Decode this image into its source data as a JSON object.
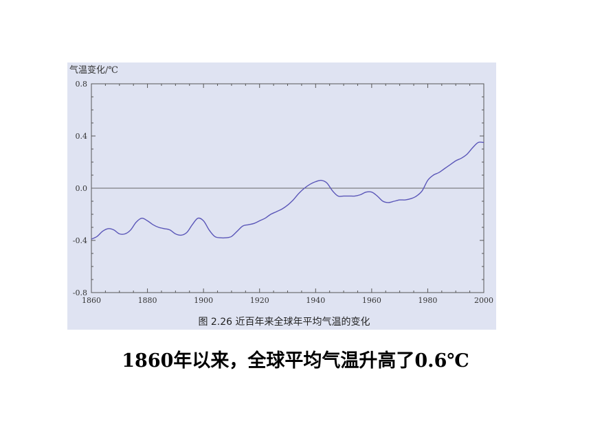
{
  "chart_data": {
    "type": "line",
    "title": "图 2.26   近百年来全球年平均气温的变化",
    "ylabel": "气温变化/℃",
    "xlabel": "",
    "xlim": [
      1860,
      2000
    ],
    "ylim": [
      -0.8,
      0.8
    ],
    "x_ticks": [
      "1860",
      "1880",
      "1900",
      "1920",
      "1940",
      "1960",
      "1980",
      "2000"
    ],
    "y_ticks": [
      "0.8",
      "0.4",
      "0.0",
      "-0.4",
      "-0.8"
    ],
    "grid": false,
    "reference_line": 0.0,
    "colors": {
      "line": "#5a56b8",
      "axis": "#555555",
      "background": "#dfe3f2"
    },
    "series": [
      {
        "x": [
          1860,
          1862,
          1864,
          1866,
          1868,
          1870,
          1872,
          1874,
          1876,
          1878,
          1880,
          1882,
          1884,
          1886,
          1888,
          1890,
          1892,
          1894,
          1896,
          1898,
          1900,
          1902,
          1904,
          1906,
          1908,
          1910,
          1912,
          1914,
          1916,
          1918,
          1920,
          1922,
          1924,
          1926,
          1928,
          1930,
          1932,
          1934,
          1936,
          1938,
          1940,
          1942,
          1944,
          1946,
          1948,
          1950,
          1952,
          1954,
          1956,
          1958,
          1960,
          1962,
          1964,
          1966,
          1968,
          1970,
          1972,
          1974,
          1976,
          1978,
          1980,
          1982,
          1984,
          1986,
          1988,
          1990,
          1992,
          1994,
          1996,
          1998,
          2000
        ],
        "y": [
          -0.39,
          -0.37,
          -0.33,
          -0.31,
          -0.32,
          -0.35,
          -0.35,
          -0.32,
          -0.26,
          -0.23,
          -0.25,
          -0.28,
          -0.3,
          -0.31,
          -0.32,
          -0.35,
          -0.36,
          -0.34,
          -0.28,
          -0.23,
          -0.25,
          -0.32,
          -0.37,
          -0.38,
          -0.38,
          -0.37,
          -0.33,
          -0.29,
          -0.28,
          -0.27,
          -0.25,
          -0.23,
          -0.2,
          -0.18,
          -0.16,
          -0.13,
          -0.09,
          -0.04,
          0.0,
          0.03,
          0.05,
          0.06,
          0.04,
          -0.02,
          -0.06,
          -0.06,
          -0.06,
          -0.06,
          -0.05,
          -0.03,
          -0.03,
          -0.06,
          -0.1,
          -0.11,
          -0.1,
          -0.09,
          -0.09,
          -0.08,
          -0.06,
          -0.02,
          0.06,
          0.1,
          0.12,
          0.15,
          0.18,
          0.21,
          0.23,
          0.26,
          0.31,
          0.35,
          0.35
        ]
      }
    ]
  },
  "footnote": "1860年以来，全球平均气温升高了0.6℃"
}
